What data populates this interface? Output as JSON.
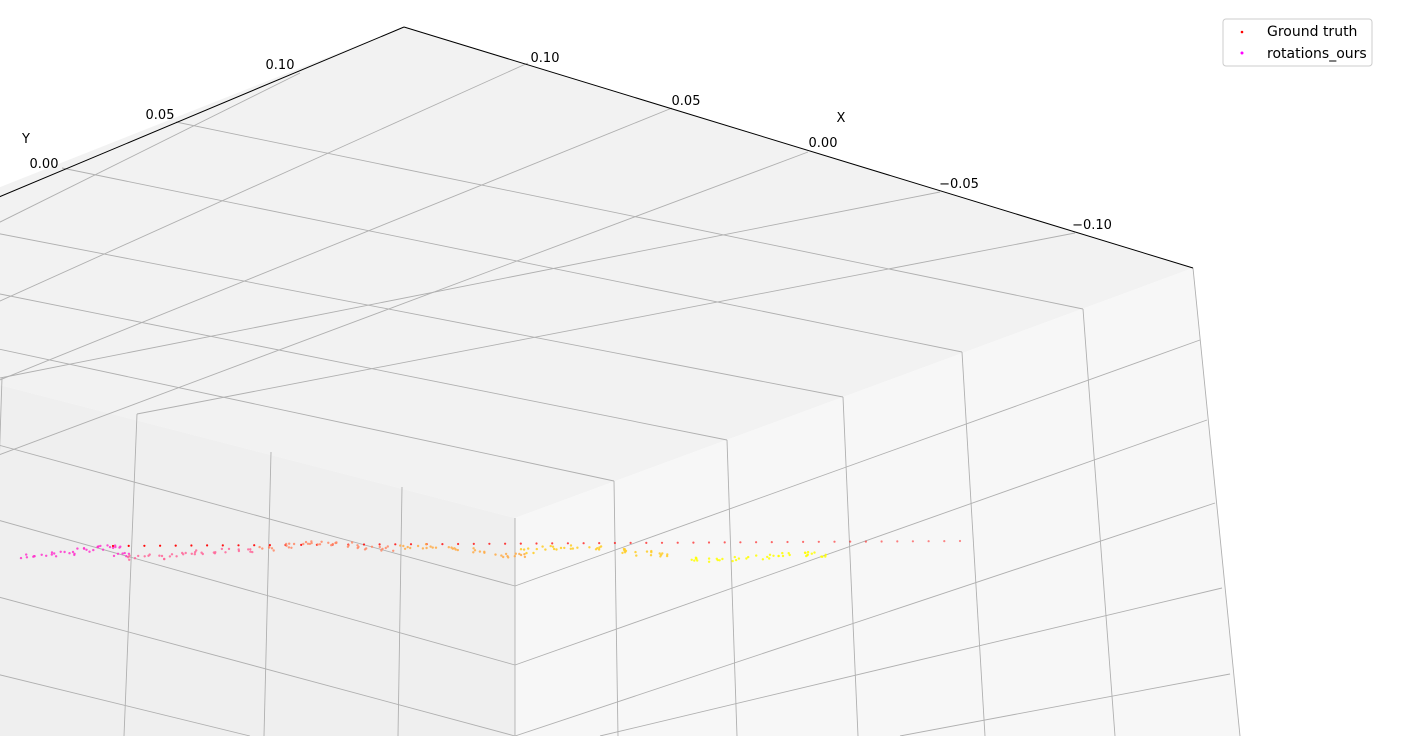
{
  "chart_data": {
    "type": "scatter",
    "projection": "3d",
    "title": "",
    "axes": {
      "x": {
        "label": "X",
        "ticks": [
          0.1,
          0.05,
          0.0,
          -0.05,
          -0.1
        ],
        "tick_labels": [
          "0.10",
          "0.05",
          "0.00",
          "−0.05",
          "−0.10"
        ]
      },
      "y": {
        "label": "Y",
        "ticks": [
          0.1,
          0.05,
          0.0
        ],
        "tick_labels": [
          "0.10",
          "0.05",
          "0.00"
        ]
      }
    },
    "grid": true,
    "legend": {
      "placement": "top-right",
      "entries": [
        "Ground truth",
        "rotations_ours"
      ]
    },
    "series": [
      {
        "name": "Ground truth",
        "color": "#ff0000",
        "marker": "point",
        "points": [
          [
            -0.01,
            0.12
          ],
          [
            -0.018,
            0.11
          ],
          [
            -0.026,
            0.1
          ],
          [
            -0.034,
            0.09
          ],
          [
            -0.042,
            0.08
          ],
          [
            -0.05,
            0.07
          ],
          [
            -0.058,
            0.06
          ],
          [
            -0.066,
            0.05
          ],
          [
            -0.074,
            0.04
          ],
          [
            -0.082,
            0.03
          ],
          [
            -0.09,
            0.02
          ],
          [
            -0.098,
            0.01
          ],
          [
            -0.106,
            0.0
          ],
          [
            -0.114,
            -0.01
          ],
          [
            -0.122,
            -0.02
          ],
          [
            -0.13,
            -0.03
          ],
          [
            -0.138,
            -0.04
          ],
          [
            -0.146,
            -0.05
          ],
          [
            -0.154,
            -0.06
          ],
          [
            -0.162,
            -0.07
          ],
          [
            -0.17,
            -0.08
          ],
          [
            -0.178,
            -0.09
          ],
          [
            -0.186,
            -0.1
          ],
          [
            -0.194,
            -0.11
          ],
          [
            -0.202,
            -0.12
          ],
          [
            -0.21,
            -0.13
          ],
          [
            -0.218,
            -0.14
          ],
          [
            -0.226,
            -0.15
          ],
          [
            -0.234,
            -0.16
          ],
          [
            -0.242,
            -0.17
          ],
          [
            -0.25,
            -0.18
          ],
          [
            -0.258,
            -0.19
          ],
          [
            -0.266,
            -0.2
          ],
          [
            -0.274,
            -0.21
          ],
          [
            -0.282,
            -0.22
          ],
          [
            -0.29,
            -0.23
          ],
          [
            -0.298,
            -0.24
          ],
          [
            -0.306,
            -0.25
          ],
          [
            -0.314,
            -0.26
          ],
          [
            -0.322,
            -0.27
          ],
          [
            -0.33,
            -0.28
          ],
          [
            -0.338,
            -0.29
          ],
          [
            -0.346,
            -0.3
          ],
          [
            -0.354,
            -0.31
          ],
          [
            -0.362,
            -0.32
          ],
          [
            -0.37,
            -0.33
          ],
          [
            -0.378,
            -0.34
          ],
          [
            -0.386,
            -0.35
          ],
          [
            -0.394,
            -0.36
          ],
          [
            -0.402,
            -0.37
          ],
          [
            -0.41,
            -0.38
          ],
          [
            -0.418,
            -0.39
          ],
          [
            -0.426,
            -0.4
          ],
          [
            -0.434,
            -0.41
          ],
          [
            -0.442,
            -0.42
          ]
        ]
      },
      {
        "name": "rotations_ours",
        "color": "#ff00ff",
        "colormap": [
          "#ff33cc",
          "#ff6699",
          "#ff8866",
          "#ffaa44",
          "#ffcc22",
          "#ffff00"
        ],
        "marker": "point",
        "points": [
          [
            0.03,
            0.155
          ],
          [
            0.02,
            0.145
          ],
          [
            0.012,
            0.135
          ],
          [
            0.004,
            0.125
          ],
          [
            -0.004,
            0.115
          ],
          [
            -0.012,
            0.105
          ],
          [
            -0.02,
            0.095
          ],
          [
            -0.028,
            0.085
          ],
          [
            -0.036,
            0.075
          ],
          [
            -0.044,
            0.065
          ],
          [
            -0.052,
            0.055
          ],
          [
            -0.06,
            0.045
          ],
          [
            -0.068,
            0.035
          ],
          [
            -0.076,
            0.025
          ],
          [
            -0.084,
            0.015
          ],
          [
            -0.092,
            0.005
          ],
          [
            -0.1,
            -0.005
          ],
          [
            -0.108,
            -0.015
          ],
          [
            -0.116,
            -0.025
          ],
          [
            -0.124,
            -0.035
          ],
          [
            -0.132,
            -0.045
          ],
          [
            -0.14,
            -0.055
          ],
          [
            -0.148,
            -0.065
          ],
          [
            -0.156,
            -0.075
          ],
          [
            -0.164,
            -0.085
          ],
          [
            -0.172,
            -0.095
          ],
          [
            -0.18,
            -0.105
          ],
          [
            -0.188,
            -0.115
          ],
          [
            -0.196,
            -0.125
          ],
          [
            -0.204,
            -0.135
          ],
          [
            -0.212,
            -0.145
          ],
          [
            -0.22,
            -0.155
          ],
          [
            -0.228,
            -0.165
          ],
          [
            -0.236,
            -0.175
          ],
          [
            -0.244,
            -0.185
          ],
          [
            -0.252,
            -0.195
          ],
          [
            -0.26,
            -0.205
          ],
          [
            -0.268,
            -0.215
          ],
          [
            -0.276,
            -0.225
          ],
          [
            -0.284,
            -0.235
          ]
        ]
      }
    ]
  }
}
